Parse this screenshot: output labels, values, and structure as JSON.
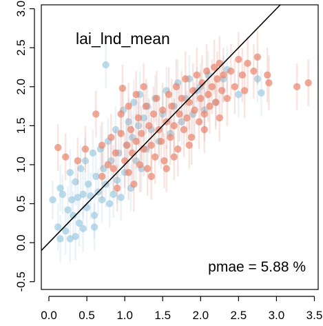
{
  "chart_data": {
    "type": "scatter",
    "title": "lai_lnd_mean",
    "annotation": "pmae = 5.88 %",
    "xlabel": "",
    "ylabel": "",
    "xlim": [
      -0.1,
      3.55
    ],
    "ylim": [
      -0.6,
      3.05
    ],
    "xticks": [
      0.0,
      0.5,
      1.0,
      1.5,
      2.0,
      2.5,
      3.0,
      3.5
    ],
    "yticks": [
      -0.5,
      0.0,
      0.5,
      1.0,
      1.5,
      2.0,
      2.5,
      3.0
    ],
    "xtick_labels": [
      "0.0",
      "0.5",
      "1.0",
      "1.5",
      "2.0",
      "2.5",
      "3.0",
      "3.5"
    ],
    "ytick_labels": [
      "-0.5",
      "0.0",
      "0.5",
      "1.0",
      "1.5",
      "2.0",
      "2.5",
      "3.0"
    ],
    "grid": false,
    "reference_line": {
      "type": "identity",
      "color": "#000000"
    },
    "colors": {
      "blue": "#9ecae1",
      "red": "#e8846e"
    },
    "series": [
      {
        "color_key": "blue",
        "points": [
          [
            0.05,
            0.55,
            0.25
          ],
          [
            0.12,
            0.2,
            0.3
          ],
          [
            0.15,
            0.7,
            0.3
          ],
          [
            0.18,
            0.62,
            0.25
          ],
          [
            0.22,
            0.15,
            0.3
          ],
          [
            0.25,
            0.42,
            0.3
          ],
          [
            0.28,
            0.9,
            0.3
          ],
          [
            0.3,
            0.55,
            0.25
          ],
          [
            0.32,
            0.35,
            0.3
          ],
          [
            0.35,
            0.78,
            0.3
          ],
          [
            0.38,
            0.58,
            0.3
          ],
          [
            0.4,
            0.25,
            0.3
          ],
          [
            0.42,
            0.95,
            0.3
          ],
          [
            0.45,
            0.62,
            0.3
          ],
          [
            0.48,
            1.05,
            0.3
          ],
          [
            0.5,
            0.45,
            0.3
          ],
          [
            0.52,
            0.75,
            0.3
          ],
          [
            0.55,
            0.6,
            0.3
          ],
          [
            0.58,
            1.15,
            0.3
          ],
          [
            0.6,
            0.35,
            0.3
          ],
          [
            0.62,
            0.85,
            0.3
          ],
          [
            0.65,
            0.65,
            0.3
          ],
          [
            0.68,
            1.2,
            0.3
          ],
          [
            0.7,
            0.55,
            0.3
          ],
          [
            0.72,
            0.95,
            0.3
          ],
          [
            0.75,
            2.28,
            0.3
          ],
          [
            0.75,
            0.75,
            0.3
          ],
          [
            0.78,
            1.3,
            0.3
          ],
          [
            0.8,
            0.5,
            0.3
          ],
          [
            0.82,
            1.05,
            0.3
          ],
          [
            0.85,
            0.62,
            0.3
          ],
          [
            0.88,
            1.45,
            0.3
          ],
          [
            0.9,
            0.8,
            0.3
          ],
          [
            0.92,
            1.15,
            0.3
          ],
          [
            0.95,
            0.58,
            0.3
          ],
          [
            0.98,
            1.7,
            0.3
          ],
          [
            1.0,
            0.9,
            0.3
          ],
          [
            1.02,
            1.25,
            0.3
          ],
          [
            1.05,
            1.55,
            0.3
          ],
          [
            1.08,
            0.7,
            0.3
          ],
          [
            1.1,
            1.35,
            0.3
          ],
          [
            1.12,
            1.8,
            0.3
          ],
          [
            1.15,
            1.05,
            0.3
          ],
          [
            1.18,
            1.5,
            0.3
          ],
          [
            1.2,
            1.9,
            0.3
          ],
          [
            1.22,
            0.95,
            0.3
          ],
          [
            1.25,
            1.6,
            0.3
          ],
          [
            1.28,
            1.2,
            0.3
          ],
          [
            1.3,
            1.75,
            0.3
          ],
          [
            1.35,
            1.45,
            0.3
          ],
          [
            1.4,
            1.85,
            0.3
          ],
          [
            1.45,
            1.3,
            0.3
          ],
          [
            1.5,
            1.65,
            0.3
          ],
          [
            1.55,
            1.95,
            0.3
          ],
          [
            1.6,
            1.4,
            0.3
          ],
          [
            1.65,
            1.75,
            0.3
          ],
          [
            1.7,
            2.05,
            0.3
          ],
          [
            1.75,
            1.55,
            0.3
          ],
          [
            1.8,
            1.85,
            0.3
          ],
          [
            1.85,
            2.1,
            0.3
          ],
          [
            1.9,
            1.65,
            0.3
          ],
          [
            1.95,
            1.95,
            0.3
          ],
          [
            2.0,
            2.0,
            0.3
          ],
          [
            2.05,
            1.7,
            0.3
          ],
          [
            2.1,
            2.15,
            0.3
          ],
          [
            2.2,
            1.8,
            0.3
          ],
          [
            2.3,
            2.1,
            0.3
          ],
          [
            2.35,
            2.22,
            0.3
          ],
          [
            2.5,
            1.9,
            0.3
          ],
          [
            2.75,
            2.1,
            0.3
          ],
          [
            2.8,
            1.92,
            0.3
          ],
          [
            0.28,
            0.05,
            0.3
          ],
          [
            0.35,
            0.08,
            0.3
          ],
          [
            0.45,
            0.18,
            0.3
          ],
          [
            0.6,
            0.2,
            0.3
          ],
          [
            0.15,
            0.05,
            0.3
          ]
        ]
      },
      {
        "color_key": "red",
        "points": [
          [
            0.12,
            1.22,
            0.3
          ],
          [
            0.22,
            1.1,
            0.3
          ],
          [
            0.38,
            1.05,
            0.3
          ],
          [
            0.48,
            1.2,
            0.3
          ],
          [
            0.62,
            1.65,
            0.3
          ],
          [
            0.7,
            0.85,
            0.3
          ],
          [
            0.78,
            1.0,
            0.3
          ],
          [
            0.82,
            1.35,
            0.3
          ],
          [
            0.88,
            1.15,
            0.3
          ],
          [
            0.9,
            0.7,
            0.3
          ],
          [
            0.95,
            1.4,
            0.3
          ],
          [
            0.97,
            1.98,
            0.3
          ],
          [
            1.0,
            1.05,
            0.35
          ],
          [
            1.03,
            1.25,
            0.35
          ],
          [
            1.05,
            0.9,
            0.35
          ],
          [
            1.08,
            1.45,
            0.35
          ],
          [
            1.1,
            1.15,
            0.35
          ],
          [
            1.12,
            0.75,
            0.35
          ],
          [
            1.15,
            1.3,
            0.35
          ],
          [
            1.18,
            1.6,
            0.35
          ],
          [
            1.2,
            1.0,
            0.35
          ],
          [
            1.22,
            1.4,
            0.35
          ],
          [
            1.25,
            1.2,
            0.35
          ],
          [
            1.28,
            1.75,
            0.35
          ],
          [
            1.3,
            0.95,
            0.35
          ],
          [
            1.32,
            1.5,
            0.35
          ],
          [
            1.35,
            1.25,
            0.35
          ],
          [
            1.38,
            1.65,
            0.35
          ],
          [
            1.4,
            1.1,
            0.35
          ],
          [
            1.42,
            1.85,
            0.35
          ],
          [
            1.45,
            1.45,
            0.35
          ],
          [
            1.48,
            1.3,
            0.35
          ],
          [
            1.5,
            1.7,
            0.35
          ],
          [
            1.52,
            1.05,
            0.35
          ],
          [
            1.55,
            1.55,
            0.35
          ],
          [
            1.58,
            1.9,
            0.35
          ],
          [
            1.6,
            1.35,
            0.35
          ],
          [
            1.62,
            1.75,
            0.35
          ],
          [
            1.65,
            1.5,
            0.35
          ],
          [
            1.68,
            2.0,
            0.35
          ],
          [
            1.7,
            1.2,
            0.35
          ],
          [
            1.72,
            1.65,
            0.35
          ],
          [
            1.75,
            1.85,
            0.35
          ],
          [
            1.78,
            1.45,
            0.35
          ],
          [
            1.8,
            2.1,
            0.35
          ],
          [
            1.82,
            1.6,
            0.35
          ],
          [
            1.85,
            1.8,
            0.35
          ],
          [
            1.88,
            1.35,
            0.35
          ],
          [
            1.9,
            1.95,
            0.35
          ],
          [
            1.92,
            1.7,
            0.35
          ],
          [
            1.95,
            2.15,
            0.35
          ],
          [
            1.98,
            1.55,
            0.35
          ],
          [
            2.0,
            1.85,
            0.35
          ],
          [
            2.02,
            2.05,
            0.35
          ],
          [
            2.05,
            1.65,
            0.35
          ],
          [
            2.08,
            2.2,
            0.35
          ],
          [
            2.1,
            1.9,
            0.35
          ],
          [
            2.12,
            1.75,
            0.35
          ],
          [
            2.15,
            2.0,
            0.35
          ],
          [
            2.18,
            2.25,
            0.35
          ],
          [
            2.2,
            1.8,
            0.35
          ],
          [
            2.22,
            2.1,
            0.35
          ],
          [
            2.25,
            2.3,
            0.35
          ],
          [
            2.28,
            1.95,
            0.35
          ],
          [
            2.3,
            2.15,
            0.35
          ],
          [
            2.35,
            1.85,
            0.35
          ],
          [
            2.4,
            2.2,
            0.35
          ],
          [
            2.45,
            2.0,
            0.35
          ],
          [
            2.5,
            2.35,
            0.35
          ],
          [
            2.55,
            2.15,
            0.35
          ],
          [
            2.58,
            1.95,
            0.35
          ],
          [
            2.62,
            2.3,
            0.35
          ],
          [
            2.7,
            2.2,
            0.35
          ],
          [
            2.75,
            2.38,
            0.35
          ],
          [
            2.88,
            2.15,
            0.35
          ],
          [
            2.9,
            2.05,
            0.35
          ],
          [
            3.27,
            2.0,
            0.3
          ],
          [
            3.42,
            2.05,
            0.3
          ],
          [
            0.95,
            1.65,
            0.3
          ],
          [
            1.05,
            1.75,
            0.3
          ],
          [
            1.25,
            2.0,
            0.3
          ],
          [
            1.35,
            0.85,
            0.3
          ],
          [
            1.55,
            0.95,
            0.3
          ],
          [
            1.65,
            1.1,
            0.3
          ],
          [
            1.85,
            1.25,
            0.3
          ],
          [
            2.05,
            1.45,
            0.3
          ],
          [
            2.25,
            1.6,
            0.3
          ],
          [
            0.7,
            1.25,
            0.3
          ],
          [
            0.85,
            0.95,
            0.3
          ],
          [
            1.15,
            1.9,
            0.3
          ]
        ]
      }
    ]
  }
}
